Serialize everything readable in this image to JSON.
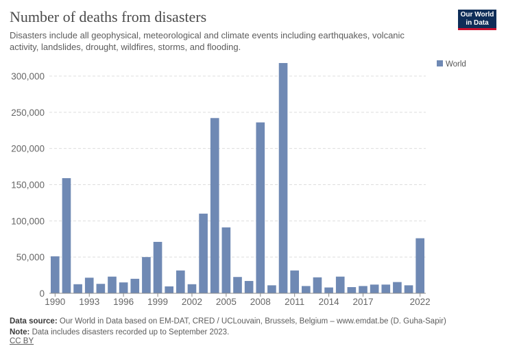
{
  "title": "Number of deaths from disasters",
  "subtitle": "Disasters include all geophysical, meteorological and climate events including earthquakes, volcanic activity, landslides, drought, wildfires, storms, and flooding.",
  "logo": {
    "line1": "Our World",
    "line2": "in Data"
  },
  "footer": {
    "source_label": "Data source:",
    "source_text": "Our World in Data based on EM-DAT, CRED / UCLouvain, Brussels, Belgium – www.emdat.be (D. Guha-Sapir)",
    "note_label": "Note:",
    "note_text": "Data includes disasters recorded up to September 2023.",
    "license": "CC BY"
  },
  "chart_data": {
    "type": "bar",
    "title": "Number of deaths from disasters",
    "xlabel": "",
    "ylabel": "",
    "ylim": [
      0,
      300000
    ],
    "yticks": [
      0,
      50000,
      100000,
      150000,
      200000,
      250000,
      300000
    ],
    "ytick_labels": [
      "0",
      "50,000",
      "100,000",
      "150,000",
      "200,000",
      "250,000",
      "300,000"
    ],
    "xtick_labels": [
      "1990",
      "1993",
      "1996",
      "1999",
      "2002",
      "2005",
      "2008",
      "2011",
      "2014",
      "2017",
      "2022"
    ],
    "legend": {
      "position": "top-right",
      "entries": [
        "World"
      ]
    },
    "grid": "horizontal-dashed",
    "colors": {
      "World": "#6f89b4"
    },
    "categories": [
      "1990",
      "1991",
      "1992",
      "1993",
      "1994",
      "1995",
      "1996",
      "1997",
      "1998",
      "1999",
      "2000",
      "2001",
      "2002",
      "2003",
      "2004",
      "2005",
      "2006",
      "2007",
      "2008",
      "2009",
      "2010",
      "2011",
      "2012",
      "2013",
      "2014",
      "2015",
      "2016",
      "2017",
      "2018",
      "2019",
      "2020",
      "2021",
      "2022"
    ],
    "series": [
      {
        "name": "World",
        "values": [
          51000,
          159000,
          12500,
          21500,
          13000,
          23000,
          15000,
          20000,
          50000,
          71000,
          9500,
          31500,
          12500,
          110000,
          242000,
          91000,
          22500,
          17000,
          236000,
          11000,
          318000,
          31500,
          10000,
          22000,
          8000,
          23000,
          8500,
          10000,
          12000,
          12000,
          15500,
          11000,
          76000
        ]
      }
    ]
  }
}
